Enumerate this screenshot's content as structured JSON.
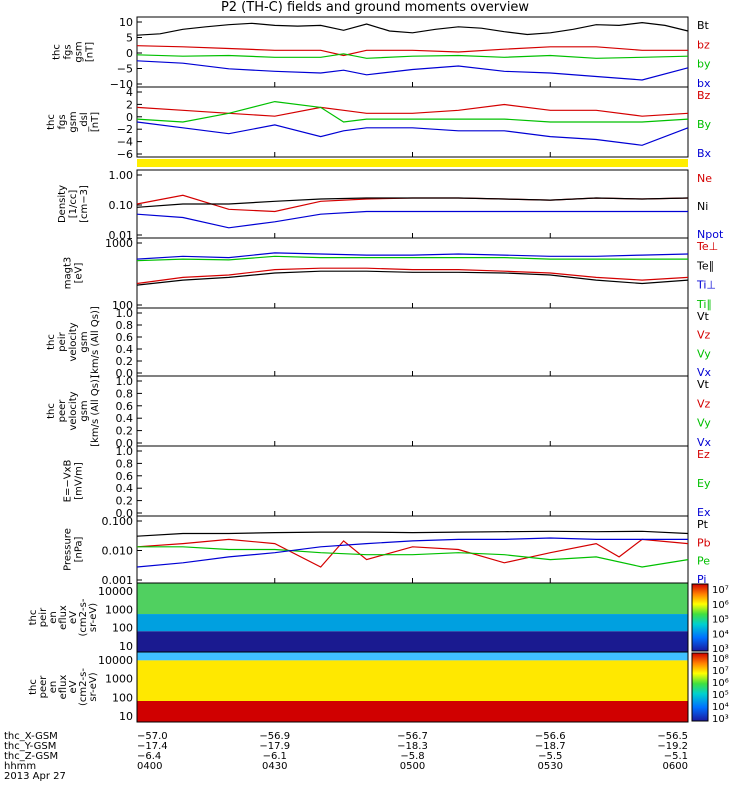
{
  "title": "P2 (TH-C) fields and ground moments overview",
  "chart_data": {
    "type": "line",
    "title": "P2 (TH-C) fields and ground moments overview",
    "x_ticks": [
      "0400",
      "0430",
      "0500",
      "0530",
      "0600"
    ],
    "time_range": [
      "0400",
      "0600"
    ],
    "panels": [
      {
        "ylabel": [
          "thc",
          "fgs",
          "gsm",
          "[nT]"
        ],
        "yticks": [
          "10",
          "5",
          "0",
          "−5",
          "−10"
        ],
        "ylim": [
          -10,
          10
        ],
        "series": [
          {
            "name": "Bt",
            "color": "#000000",
            "x": [
              0,
              5,
              10,
              15,
              20,
              25,
              30,
              35,
              40,
              45,
              50,
              55,
              60,
              65,
              70,
              75,
              80,
              85,
              90,
              95,
              100,
              105,
              110,
              115,
              120
            ],
            "values": [
              4.8,
              5.2,
              6.5,
              7.2,
              7.8,
              8.2,
              7.6,
              7.4,
              7.6,
              6.2,
              8.0,
              6.0,
              5.5,
              6.5,
              7.2,
              6.8,
              5.8,
              5.0,
              5.5,
              6.5,
              7.8,
              7.6,
              8.4,
              7.6,
              6.0
            ]
          },
          {
            "name": "bz",
            "color": "#d40000",
            "x": [
              0,
              10,
              20,
              30,
              40,
              45,
              50,
              60,
              70,
              80,
              90,
              100,
              110,
              120
            ],
            "values": [
              1.8,
              1.5,
              1.0,
              0.5,
              0.5,
              -1.0,
              0.5,
              0.5,
              0.0,
              0.8,
              1.5,
              1.5,
              0.5,
              0.5
            ]
          },
          {
            "name": "by",
            "color": "#00c000",
            "x": [
              0,
              10,
              20,
              30,
              40,
              45,
              50,
              60,
              70,
              80,
              90,
              100,
              110,
              120
            ],
            "values": [
              -0.8,
              -1.2,
              -1.0,
              -1.5,
              -1.5,
              -0.5,
              -1.8,
              -1.2,
              -1.0,
              -1.5,
              -1.0,
              -1.8,
              -1.5,
              -1.2
            ]
          },
          {
            "name": "bx",
            "color": "#0000d4",
            "x": [
              0,
              10,
              20,
              30,
              40,
              45,
              50,
              60,
              70,
              80,
              90,
              100,
              110,
              120
            ],
            "values": [
              -2.5,
              -3.2,
              -4.8,
              -5.5,
              -6.0,
              -5.2,
              -6.5,
              -5.0,
              -4.0,
              -5.5,
              -6.0,
              -7.0,
              -8.0,
              -4.5
            ]
          }
        ]
      },
      {
        "ylabel": [
          "thc",
          "fgs",
          "gsm",
          "_dsl",
          "[nT]"
        ],
        "yticks": [
          "4",
          "2",
          "0",
          "−2",
          "−4",
          "−6"
        ],
        "ylim": [
          -7,
          5
        ],
        "series": [
          {
            "name": "Bz",
            "color": "#d40000",
            "x": [
              0,
              10,
              20,
              30,
              40,
              45,
              50,
              60,
              70,
              80,
              90,
              100,
              110,
              120
            ],
            "values": [
              1.5,
              1.0,
              0.5,
              0.0,
              1.5,
              1.0,
              0.5,
              0.5,
              1.0,
              2.0,
              1.0,
              1.0,
              0.0,
              0.5
            ]
          },
          {
            "name": "By",
            "color": "#00c000",
            "x": [
              0,
              10,
              20,
              30,
              40,
              45,
              50,
              60,
              70,
              80,
              90,
              100,
              110,
              120
            ],
            "values": [
              -0.5,
              -1.0,
              0.5,
              2.5,
              1.5,
              -1.0,
              -0.5,
              -0.5,
              -0.5,
              -0.5,
              -1.0,
              -1.0,
              -1.0,
              -0.5
            ]
          },
          {
            "name": "Bx",
            "color": "#0000d4",
            "x": [
              0,
              10,
              20,
              30,
              40,
              45,
              50,
              60,
              70,
              80,
              90,
              100,
              110,
              120
            ],
            "values": [
              -1.0,
              -2.0,
              -3.0,
              -1.5,
              -3.5,
              -2.5,
              -2.0,
              -2.0,
              -2.5,
              -2.5,
              -3.5,
              -4.0,
              -5.0,
              -2.0
            ]
          }
        ]
      },
      {
        "ylabel": [
          "Density",
          "[1/cc]",
          "[cm−3]"
        ],
        "yticks": [
          "1.00",
          "0.10",
          "0.01"
        ],
        "ylim": [
          0.01,
          1.0
        ],
        "log": true,
        "series": [
          {
            "name": "Ne",
            "color": "#d40000",
            "x": [
              0,
              10,
              20,
              30,
              40,
              50,
              60,
              70,
              80,
              90,
              100,
              110,
              120
            ],
            "values": [
              0.1,
              0.18,
              0.07,
              0.06,
              0.12,
              0.14,
              0.15,
              0.15,
              0.14,
              0.13,
              0.15,
              0.14,
              0.15
            ]
          },
          {
            "name": "Ni",
            "color": "#000000",
            "x": [
              0,
              10,
              20,
              30,
              40,
              50,
              60,
              70,
              80,
              90,
              100,
              110,
              120
            ],
            "values": [
              0.08,
              0.1,
              0.1,
              0.12,
              0.14,
              0.15,
              0.15,
              0.15,
              0.14,
              0.13,
              0.15,
              0.14,
              0.15
            ]
          },
          {
            "name": "Npot",
            "color": "#0000d4",
            "x": [
              0,
              10,
              20,
              30,
              40,
              50,
              60,
              70,
              80,
              90,
              100,
              110,
              120
            ],
            "values": [
              0.05,
              0.04,
              0.02,
              0.03,
              0.05,
              0.06,
              0.06,
              0.06,
              0.06,
              0.06,
              0.06,
              0.06,
              0.06
            ]
          }
        ]
      },
      {
        "ylabel": [
          "magt3",
          "[eV]"
        ],
        "yticks": [
          "1000",
          "100"
        ],
        "ylim": [
          40,
          4000
        ],
        "log": true,
        "series": [
          {
            "name": "Te⊥",
            "color": "#d40000",
            "x": [
              0,
              10,
              20,
              30,
              40,
              50,
              60,
              70,
              80,
              90,
              100,
              110,
              120
            ],
            "values": [
              200,
              300,
              350,
              500,
              550,
              550,
              500,
              500,
              450,
              400,
              300,
              250,
              300
            ]
          },
          {
            "name": "Te∥",
            "color": "#000000",
            "x": [
              0,
              10,
              20,
              30,
              40,
              50,
              60,
              70,
              80,
              90,
              100,
              110,
              120
            ],
            "values": [
              180,
              250,
              300,
              400,
              450,
              450,
              420,
              420,
              400,
              350,
              250,
              200,
              250
            ]
          },
          {
            "name": "Ti⊥",
            "color": "#0000d4",
            "x": [
              0,
              10,
              20,
              30,
              40,
              50,
              60,
              70,
              80,
              90,
              100,
              110,
              120
            ],
            "values": [
              1000,
              1200,
              1100,
              1500,
              1400,
              1300,
              1300,
              1400,
              1300,
              1200,
              1200,
              1300,
              1400
            ]
          },
          {
            "name": "Ti∥",
            "color": "#00c000",
            "x": [
              0,
              10,
              20,
              30,
              40,
              50,
              60,
              70,
              80,
              90,
              100,
              110,
              120
            ],
            "values": [
              900,
              1000,
              950,
              1200,
              1100,
              1100,
              1100,
              1100,
              1100,
              1000,
              1000,
              1000,
              1000
            ]
          }
        ]
      },
      {
        "ylabel": [
          "thc",
          "peir",
          "velocity",
          "gsm",
          "[km/s (All Qs)]"
        ],
        "yticks": [
          "1.0",
          "0.8",
          "0.6",
          "0.4",
          "0.2",
          "0.0"
        ],
        "ylim": [
          0,
          1
        ],
        "series": [
          {
            "name": "Vt",
            "color": "#000000",
            "x": [],
            "values": []
          },
          {
            "name": "Vz",
            "color": "#d40000",
            "x": [],
            "values": []
          },
          {
            "name": "Vy",
            "color": "#00c000",
            "x": [],
            "values": []
          },
          {
            "name": "Vx",
            "color": "#0000d4",
            "x": [],
            "values": []
          }
        ]
      },
      {
        "ylabel": [
          "thc",
          "peer",
          "velocity",
          "gsm",
          "[km/s (All Qs)]"
        ],
        "yticks": [
          "1.0",
          "0.8",
          "0.6",
          "0.4",
          "0.2",
          "0.0"
        ],
        "ylim": [
          0,
          1
        ],
        "series": [
          {
            "name": "Vt",
            "color": "#000000",
            "x": [],
            "values": []
          },
          {
            "name": "Vz",
            "color": "#d40000",
            "x": [],
            "values": []
          },
          {
            "name": "Vy",
            "color": "#00c000",
            "x": [],
            "values": []
          },
          {
            "name": "Vx",
            "color": "#0000d4",
            "x": [],
            "values": []
          }
        ]
      },
      {
        "ylabel": [
          "E=−VxB",
          "[mV/m]"
        ],
        "yticks": [
          "1.0",
          "0.8",
          "0.6",
          "0.4",
          "0.2",
          "0.0"
        ],
        "ylim": [
          0,
          1
        ],
        "series": [
          {
            "name": "Ez",
            "color": "#d40000",
            "x": [],
            "values": []
          },
          {
            "name": "Ey",
            "color": "#00c000",
            "x": [],
            "values": []
          },
          {
            "name": "Ex",
            "color": "#0000d4",
            "x": [],
            "values": []
          }
        ]
      },
      {
        "ylabel": [
          "Pressure",
          "[nPa]"
        ],
        "yticks": [
          "0.100",
          "0.010",
          "0.001"
        ],
        "ylim": [
          0.001,
          0.1
        ],
        "log": true,
        "series": [
          {
            "name": "Pt",
            "color": "#000000",
            "x": [
              0,
              10,
              20,
              30,
              40,
              50,
              60,
              70,
              80,
              90,
              100,
              110,
              120
            ],
            "values": [
              0.025,
              0.03,
              0.03,
              0.032,
              0.033,
              0.033,
              0.032,
              0.033,
              0.034,
              0.035,
              0.034,
              0.035,
              0.03
            ]
          },
          {
            "name": "Pb",
            "color": "#d40000",
            "x": [
              0,
              10,
              20,
              30,
              40,
              45,
              50,
              60,
              70,
              80,
              90,
              100,
              105,
              110,
              120
            ],
            "values": [
              0.012,
              0.015,
              0.02,
              0.015,
              0.003,
              0.018,
              0.005,
              0.012,
              0.01,
              0.004,
              0.008,
              0.015,
              0.006,
              0.02,
              0.015
            ]
          },
          {
            "name": "Pe",
            "color": "#00c000",
            "x": [
              0,
              10,
              20,
              30,
              40,
              50,
              60,
              70,
              80,
              90,
              100,
              110,
              120
            ],
            "values": [
              0.012,
              0.012,
              0.01,
              0.01,
              0.008,
              0.007,
              0.007,
              0.008,
              0.007,
              0.005,
              0.006,
              0.003,
              0.005
            ]
          },
          {
            "name": "Pi",
            "color": "#0000d4",
            "x": [
              0,
              10,
              20,
              30,
              40,
              50,
              60,
              70,
              80,
              90,
              100,
              110,
              120
            ],
            "values": [
              0.003,
              0.004,
              0.006,
              0.008,
              0.012,
              0.015,
              0.018,
              0.02,
              0.02,
              0.022,
              0.02,
              0.02,
              0.02
            ]
          }
        ]
      }
    ],
    "spectrograms": [
      {
        "ylabel": [
          "thc",
          "peir",
          "en",
          "eflux",
          "eV",
          "(cm2-s-",
          "sr-eV)"
        ],
        "yticks": [
          "10000",
          "1000",
          "100",
          "10"
        ],
        "colorbar_ticks": [
          "10⁷",
          "10⁶",
          "10⁵",
          "10⁴",
          "10³"
        ]
      },
      {
        "ylabel": [
          "thc",
          "peer",
          "en",
          "eflux",
          "eV",
          "(cm2-s-",
          "sr-eV)"
        ],
        "yticks": [
          "10000",
          "1000",
          "100",
          "10"
        ],
        "colorbar_ticks": [
          "10⁸",
          "10⁷",
          "10⁶",
          "10⁵",
          "10⁴",
          "10³"
        ]
      }
    ],
    "footer": {
      "rows": [
        {
          "label": "thc_X-GSM",
          "values": [
            "−57.0",
            "−56.9",
            "−56.7",
            "−56.6",
            "−56.5"
          ]
        },
        {
          "label": "thc_Y-GSM",
          "values": [
            "−17.4",
            "−17.9",
            "−18.3",
            "−18.7",
            "−19.2"
          ]
        },
        {
          "label": "thc_Z-GSM",
          "values": [
            "−6.4",
            "−6.1",
            "−5.8",
            "−5.5",
            "−5.1"
          ]
        },
        {
          "label": "hhmm",
          "values": [
            "0400",
            "0430",
            "0500",
            "0530",
            "0600"
          ]
        }
      ],
      "date": "2013 Apr 27"
    }
  }
}
